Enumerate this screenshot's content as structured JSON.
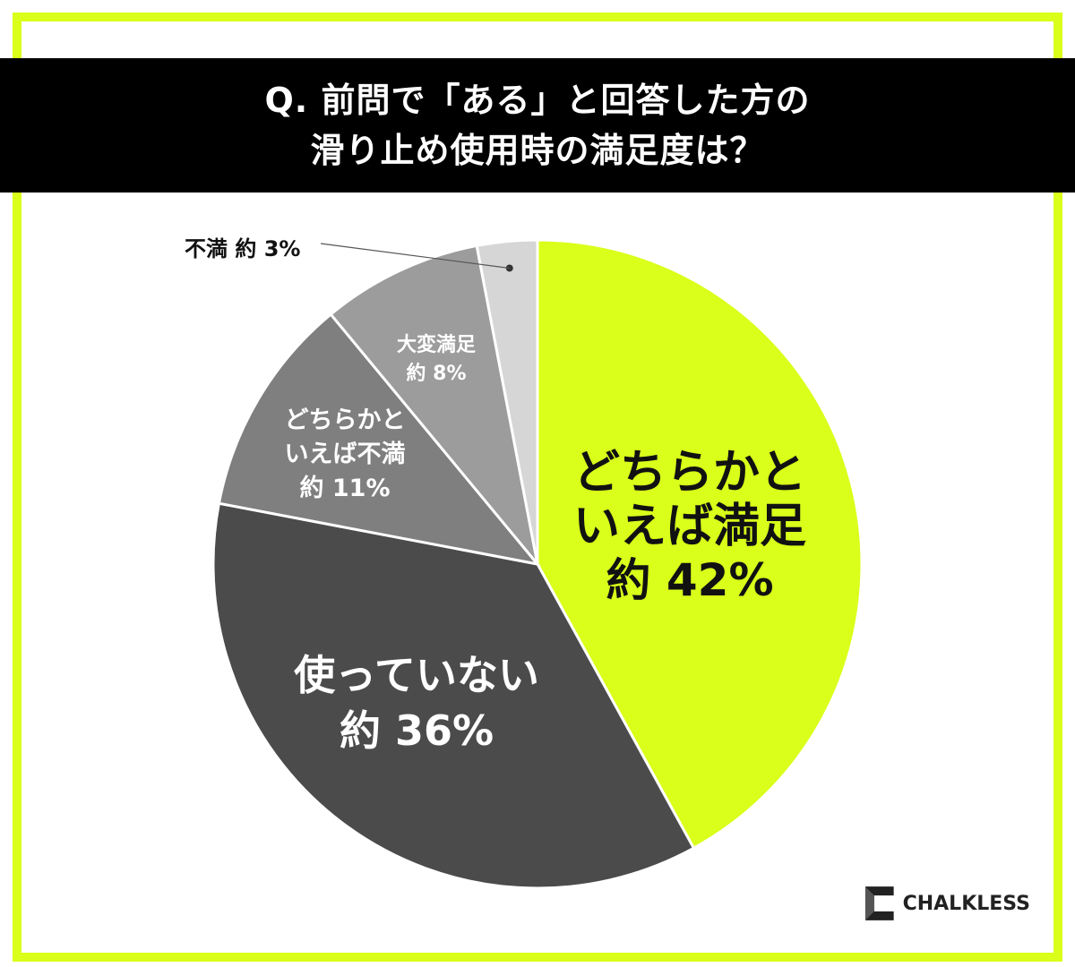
{
  "title": {
    "line1": "Q. 前問で「ある」と回答した方の",
    "line2": "滑り止め使用時の満足度は？"
  },
  "colors": {
    "accent": "#d9ff1a",
    "frame": "#d9ff1a"
  },
  "chart_data": {
    "type": "pie",
    "title": "Q. 前問で「ある」と回答した方の滑り止め使用時の満足度は？",
    "slices": [
      {
        "name": "どちらかといえば満足",
        "value": 42,
        "label_lines": [
          "どちらかと",
          "いえば満足"
        ],
        "value_label": "約 42%",
        "color": "#d9ff1a"
      },
      {
        "name": "使っていない",
        "value": 36,
        "label_lines": [
          "使っていない"
        ],
        "value_label": "約 36%",
        "color": "#4b4b4b"
      },
      {
        "name": "どちらかといえば不満",
        "value": 11,
        "label_lines": [
          "どちらかと",
          "いえば不満"
        ],
        "value_label": "約 11%",
        "color": "#7f7f7f"
      },
      {
        "name": "大変満足",
        "value": 8,
        "label_lines": [
          "大変満足"
        ],
        "value_label": "約 8%",
        "color": "#9c9c9c"
      },
      {
        "name": "不満",
        "value": 3,
        "label_lines": [
          "不満"
        ],
        "value_label": "約 3%",
        "color": "#d6d6d6"
      }
    ],
    "start_angle": "12 o'clock",
    "direction": "clockwise"
  },
  "logo": {
    "text": "CHALKLESS"
  }
}
